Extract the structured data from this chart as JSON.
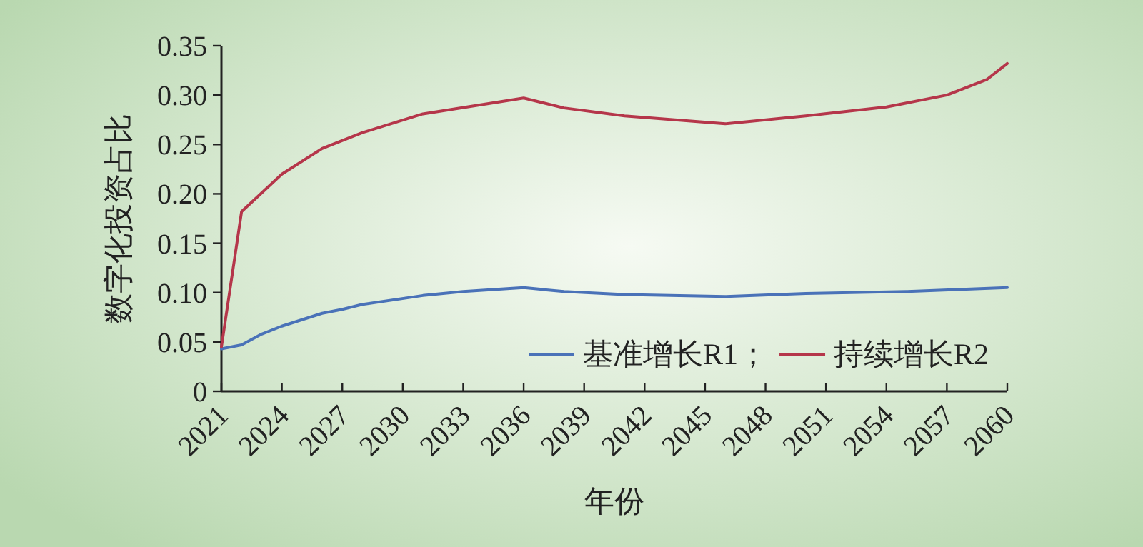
{
  "chart_data": {
    "type": "line",
    "xlabel": "年份",
    "ylabel": "数字化投资占比",
    "xlim": [
      2021,
      2060
    ],
    "xticks": [
      2021,
      2024,
      2027,
      2030,
      2033,
      2036,
      2039,
      2042,
      2045,
      2048,
      2051,
      2054,
      2057,
      2060
    ],
    "ylim": [
      0,
      0.35
    ],
    "yticks": [
      {
        "value": 0,
        "label": "0"
      },
      {
        "value": 0.05,
        "label": "0.05"
      },
      {
        "value": 0.1,
        "label": "0.10"
      },
      {
        "value": 0.15,
        "label": "0.15"
      },
      {
        "value": 0.2,
        "label": "0.20"
      },
      {
        "value": 0.25,
        "label": "0.25"
      },
      {
        "value": 0.3,
        "label": "0.30"
      },
      {
        "value": 0.35,
        "label": "0.35"
      }
    ],
    "grid": false,
    "legend": "bottom right",
    "marker": "none",
    "line_style": "solid",
    "series": [
      {
        "name": "基准增长R1；",
        "color": "#4a72b8",
        "x": [
          2021,
          2022,
          2023,
          2024,
          2026,
          2027,
          2028,
          2031,
          2033,
          2036,
          2038,
          2041,
          2046,
          2050,
          2055,
          2060
        ],
        "values": [
          0.043,
          0.047,
          0.058,
          0.066,
          0.079,
          0.083,
          0.088,
          0.097,
          0.101,
          0.105,
          0.101,
          0.098,
          0.096,
          0.099,
          0.101,
          0.105
        ]
      },
      {
        "name": "持续增长R2",
        "color": "#b5364a",
        "x": [
          2021,
          2022,
          2024,
          2026,
          2028,
          2031,
          2036,
          2038,
          2041,
          2046,
          2050,
          2054,
          2057,
          2059,
          2060
        ],
        "values": [
          0.045,
          0.182,
          0.22,
          0.246,
          0.262,
          0.281,
          0.297,
          0.287,
          0.279,
          0.271,
          0.279,
          0.288,
          0.3,
          0.316,
          0.332
        ]
      }
    ]
  }
}
